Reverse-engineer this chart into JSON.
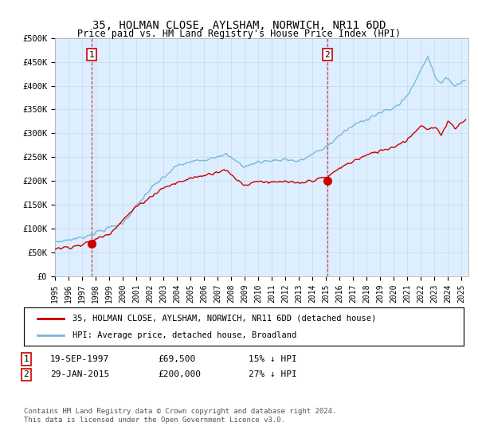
{
  "title": "35, HOLMAN CLOSE, AYLSHAM, NORWICH, NR11 6DD",
  "subtitle": "Price paid vs. HM Land Registry's House Price Index (HPI)",
  "ylim": [
    0,
    500000
  ],
  "yticks": [
    0,
    50000,
    100000,
    150000,
    200000,
    250000,
    300000,
    350000,
    400000,
    450000,
    500000
  ],
  "ytick_labels": [
    "£0",
    "£50K",
    "£100K",
    "£150K",
    "£200K",
    "£250K",
    "£300K",
    "£350K",
    "£400K",
    "£450K",
    "£500K"
  ],
  "sale1_date": 1997.72,
  "sale1_price": 69500,
  "sale1_label": "1",
  "sale2_date": 2015.08,
  "sale2_price": 200000,
  "sale2_label": "2",
  "hpi_color": "#7ab8d8",
  "price_color": "#cc0000",
  "vline_color": "#cc0000",
  "grid_color": "#c8d8e8",
  "bg_color": "#ddeeff",
  "plot_bg": "#ddeeff",
  "background_color": "#ffffff",
  "legend_label_price": "35, HOLMAN CLOSE, AYLSHAM, NORWICH, NR11 6DD (detached house)",
  "legend_label_hpi": "HPI: Average price, detached house, Broadland",
  "footnote": "Contains HM Land Registry data © Crown copyright and database right 2024.\nThis data is licensed under the Open Government Licence v3.0.",
  "xmin": 1995,
  "xmax": 2025.5,
  "sale1_info_date": "19-SEP-1997",
  "sale1_info_price": "£69,500",
  "sale1_info_hpi": "15% ↓ HPI",
  "sale2_info_date": "29-JAN-2015",
  "sale2_info_price": "£200,000",
  "sale2_info_hpi": "27% ↓ HPI"
}
